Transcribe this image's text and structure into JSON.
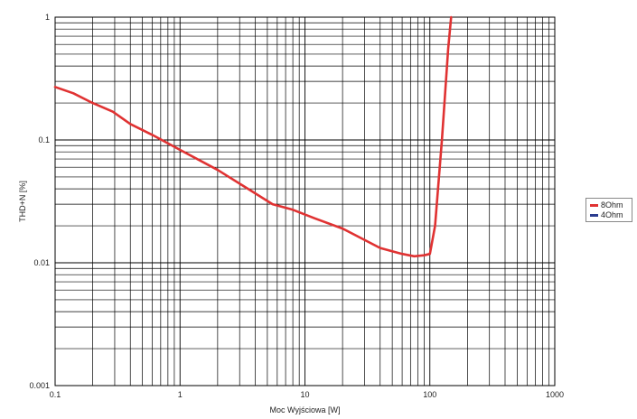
{
  "chart_data": {
    "type": "line",
    "xlabel": "Moc Wyjściowa [W]",
    "ylabel": "THD+N [%]",
    "xscale": "log",
    "yscale": "log",
    "xlim": [
      0.1,
      1000
    ],
    "ylim": [
      0.001,
      1
    ],
    "grid": true,
    "legend_position": "right",
    "x_ticks": [
      {
        "value": 0.1,
        "label": "0.1"
      },
      {
        "value": 1,
        "label": "1"
      },
      {
        "value": 10,
        "label": "10"
      },
      {
        "value": 100,
        "label": "100"
      },
      {
        "value": 1000,
        "label": "1000"
      }
    ],
    "y_ticks": [
      {
        "value": 1,
        "label": "1"
      },
      {
        "value": 0.1,
        "label": "0.1"
      },
      {
        "value": 0.01,
        "label": "0.01"
      },
      {
        "value": 0.001,
        "label": "0.001"
      }
    ],
    "series": [
      {
        "name": "8Ohm",
        "color": "#e03232",
        "x": [
          0.1,
          0.14,
          0.2,
          0.29,
          0.4,
          0.6,
          1.0,
          2.0,
          3.5,
          5.5,
          8,
          12,
          20,
          40,
          60,
          75,
          90,
          100,
          110,
          125,
          140,
          148
        ],
        "y": [
          0.27,
          0.24,
          0.2,
          0.17,
          0.135,
          0.11,
          0.083,
          0.057,
          0.04,
          0.03,
          0.027,
          0.023,
          0.019,
          0.0132,
          0.0118,
          0.0113,
          0.0115,
          0.0118,
          0.02,
          0.1,
          0.55,
          1.0
        ]
      },
      {
        "name": "4Ohm",
        "color": "#2a3c8f",
        "x": [],
        "y": []
      }
    ]
  }
}
